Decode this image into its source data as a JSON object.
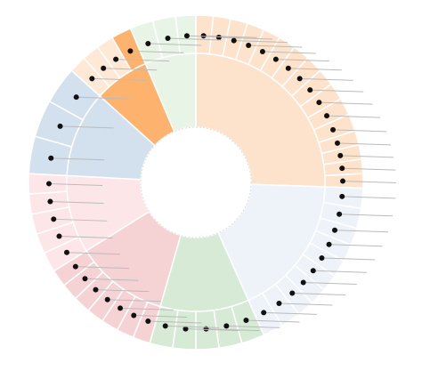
{
  "chart_data": {
    "type": "sunburst",
    "groups": [
      {
        "color": "#fde3cc",
        "values": [
          6,
          6,
          6,
          6,
          6,
          6,
          6,
          6,
          6,
          6,
          6,
          6,
          5,
          5,
          5,
          5
        ]
      },
      {
        "color": "#eef2f9",
        "values": [
          7,
          7,
          6,
          6,
          6,
          6,
          6,
          6,
          7,
          7
        ]
      },
      {
        "color": "#d6ead6",
        "values": [
          8,
          8,
          8,
          8,
          8
        ]
      },
      {
        "color": "#f5d3d5",
        "values": [
          6,
          6,
          6,
          6,
          6,
          6,
          6
        ]
      },
      {
        "color": "#fde6e7",
        "values": [
          7,
          7,
          7,
          7,
          7
        ]
      },
      {
        "color": "#d3e0ee",
        "values": [
          13,
          13,
          13
        ]
      },
      {
        "color": "#fdb36e",
        "values": [
          6,
          6,
          6,
          7
        ],
        "colors": [
          "#fde9d6",
          "#fde9d6",
          "#fde9d6",
          "#fdb36e"
        ]
      },
      {
        "color": "#e8f5e6",
        "values": [
          8,
          8,
          7
        ]
      }
    ]
  }
}
